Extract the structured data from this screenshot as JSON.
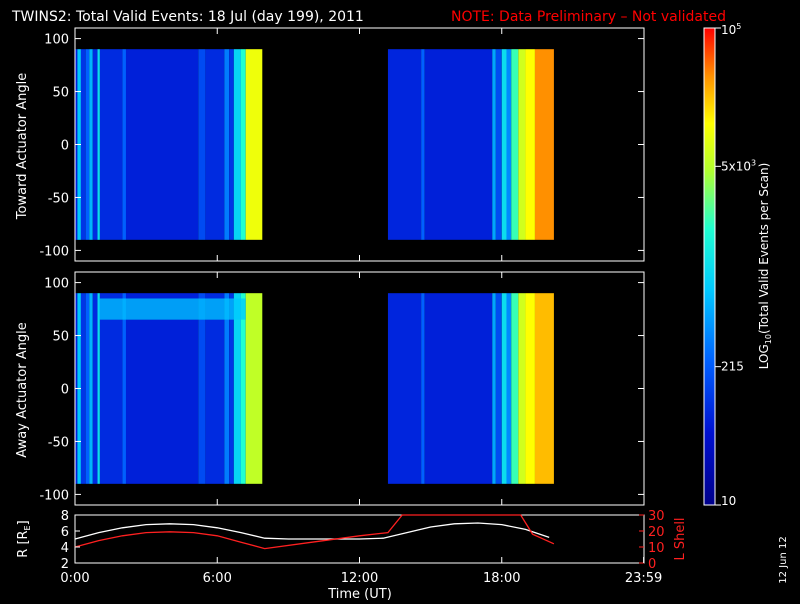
{
  "header": {
    "title": "TWINS2: Total Valid Events: 18 Jul (day 199), 2011",
    "note": "NOTE: Data Preliminary – Not validated",
    "note_color": "#ff0000"
  },
  "date_stamp": "12 Jun 12",
  "chart_data": [
    {
      "type": "heatmap",
      "panel": "toward",
      "ylabel": "Toward Actuator Angle",
      "ylim": [
        -110,
        110
      ],
      "yticks": [
        -100,
        -50,
        0,
        50,
        100
      ],
      "xlim_hours": [
        0,
        24
      ],
      "data_y_range": [
        -90,
        90
      ],
      "data_blocks_hours": [
        [
          0.0,
          7.9
        ],
        [
          13.2,
          20.2
        ]
      ],
      "bands": [
        {
          "t": [
            0.0,
            0.1
          ],
          "level": 0.18
        },
        {
          "t": [
            0.1,
            0.25
          ],
          "level": 0.45
        },
        {
          "t": [
            0.25,
            0.45
          ],
          "level": 0.22
        },
        {
          "t": [
            0.45,
            0.6
          ],
          "level": 0.3
        },
        {
          "t": [
            0.6,
            0.75
          ],
          "level": 0.42
        },
        {
          "t": [
            0.75,
            0.95
          ],
          "level": 0.2
        },
        {
          "t": [
            0.95,
            1.05
          ],
          "level": 0.5
        },
        {
          "t": [
            1.05,
            2.0
          ],
          "level": 0.2
        },
        {
          "t": [
            2.0,
            2.15
          ],
          "level": 0.3
        },
        {
          "t": [
            2.15,
            5.2
          ],
          "level": 0.18
        },
        {
          "t": [
            5.2,
            5.5
          ],
          "level": 0.26
        },
        {
          "t": [
            5.5,
            6.3
          ],
          "level": 0.2
        },
        {
          "t": [
            6.3,
            6.5
          ],
          "level": 0.34
        },
        {
          "t": [
            6.5,
            6.7
          ],
          "level": 0.22
        },
        {
          "t": [
            6.7,
            7.0
          ],
          "level": 0.48
        },
        {
          "t": [
            7.0,
            7.2
          ],
          "level": 0.58
        },
        {
          "t": [
            7.2,
            7.9
          ],
          "level": 0.78
        },
        {
          "t": [
            13.2,
            14.6
          ],
          "level": 0.19
        },
        {
          "t": [
            14.6,
            14.75
          ],
          "level": 0.3
        },
        {
          "t": [
            14.75,
            17.6
          ],
          "level": 0.18
        },
        {
          "t": [
            17.6,
            17.75
          ],
          "level": 0.4
        },
        {
          "t": [
            17.75,
            18.0
          ],
          "level": 0.26
        },
        {
          "t": [
            18.0,
            18.2
          ],
          "level": 0.5
        },
        {
          "t": [
            18.2,
            18.4
          ],
          "level": 0.36
        },
        {
          "t": [
            18.4,
            18.7
          ],
          "level": 0.6
        },
        {
          "t": [
            18.7,
            19.0
          ],
          "level": 0.74
        },
        {
          "t": [
            19.0,
            19.4
          ],
          "level": 0.8
        },
        {
          "t": [
            19.4,
            20.2
          ],
          "level": 0.9
        }
      ],
      "hot_strip": null
    },
    {
      "type": "heatmap",
      "panel": "away",
      "ylabel": "Away Actuator Angle",
      "ylim": [
        -110,
        110
      ],
      "yticks": [
        -100,
        -50,
        0,
        50,
        100
      ],
      "xlim_hours": [
        0,
        24
      ],
      "data_y_range": [
        -90,
        90
      ],
      "data_blocks_hours": [
        [
          0.0,
          7.9
        ],
        [
          13.2,
          20.2
        ]
      ],
      "bands": [
        {
          "t": [
            0.0,
            0.1
          ],
          "level": 0.18
        },
        {
          "t": [
            0.1,
            0.25
          ],
          "level": 0.45
        },
        {
          "t": [
            0.25,
            0.45
          ],
          "level": 0.22
        },
        {
          "t": [
            0.45,
            0.6
          ],
          "level": 0.3
        },
        {
          "t": [
            0.6,
            0.75
          ],
          "level": 0.42
        },
        {
          "t": [
            0.75,
            0.95
          ],
          "level": 0.2
        },
        {
          "t": [
            0.95,
            1.05
          ],
          "level": 0.5
        },
        {
          "t": [
            1.05,
            2.0
          ],
          "level": 0.2
        },
        {
          "t": [
            2.0,
            2.15
          ],
          "level": 0.3
        },
        {
          "t": [
            2.15,
            5.2
          ],
          "level": 0.18
        },
        {
          "t": [
            5.2,
            5.5
          ],
          "level": 0.26
        },
        {
          "t": [
            5.5,
            6.3
          ],
          "level": 0.2
        },
        {
          "t": [
            6.3,
            6.5
          ],
          "level": 0.34
        },
        {
          "t": [
            6.5,
            6.7
          ],
          "level": 0.22
        },
        {
          "t": [
            6.7,
            7.0
          ],
          "level": 0.48
        },
        {
          "t": [
            7.0,
            7.2
          ],
          "level": 0.58
        },
        {
          "t": [
            7.2,
            7.9
          ],
          "level": 0.72
        },
        {
          "t": [
            13.2,
            14.6
          ],
          "level": 0.19
        },
        {
          "t": [
            14.6,
            14.75
          ],
          "level": 0.3
        },
        {
          "t": [
            14.75,
            17.6
          ],
          "level": 0.18
        },
        {
          "t": [
            17.6,
            17.75
          ],
          "level": 0.4
        },
        {
          "t": [
            17.75,
            18.0
          ],
          "level": 0.26
        },
        {
          "t": [
            18.0,
            18.2
          ],
          "level": 0.5
        },
        {
          "t": [
            18.2,
            18.4
          ],
          "level": 0.36
        },
        {
          "t": [
            18.4,
            18.7
          ],
          "level": 0.6
        },
        {
          "t": [
            18.7,
            19.0
          ],
          "level": 0.74
        },
        {
          "t": [
            19.0,
            19.4
          ],
          "level": 0.8
        },
        {
          "t": [
            19.4,
            20.2
          ],
          "level": 0.86
        }
      ],
      "hot_strip": {
        "t": [
          1.0,
          7.2
        ],
        "y": [
          65,
          85
        ],
        "level": 0.45
      }
    },
    {
      "type": "line",
      "panel": "orbit",
      "ylabel_left": "R [R",
      "ylabel_left_sub": "E",
      "ylabel_left_close": "]",
      "ylabel_right": "L Shell",
      "ylim_left": [
        2,
        8
      ],
      "yticks_left": [
        2,
        4,
        6,
        8
      ],
      "ylim_right": [
        0,
        30
      ],
      "yticks_right": [
        0,
        10,
        20,
        30
      ],
      "xlabel": "Time (UT)",
      "xlim_hours": [
        0,
        24
      ],
      "xtick_hours": [
        0,
        6,
        12,
        18,
        23.9833
      ],
      "xtick_labels": [
        "0:00",
        "6:00",
        "12:00",
        "18:00",
        "23:59"
      ],
      "series": [
        {
          "axis": "left",
          "color": "#ffffff",
          "x": [
            0,
            1,
            2,
            3,
            4,
            5,
            6,
            7,
            8,
            9,
            10,
            11,
            12,
            13,
            14,
            15,
            16,
            17,
            18,
            19,
            20
          ],
          "y": [
            5.0,
            5.8,
            6.4,
            6.8,
            6.9,
            6.8,
            6.4,
            5.8,
            5.1,
            5.0,
            5.0,
            5.0,
            5.0,
            5.1,
            5.8,
            6.5,
            6.9,
            7.0,
            6.8,
            6.2,
            5.2
          ]
        },
        {
          "axis": "right",
          "color": "#ff2020",
          "x": [
            0,
            1,
            2,
            3,
            4,
            5,
            6,
            7,
            8,
            10,
            12,
            13.2,
            13.8,
            18.8,
            19.3,
            20.2
          ],
          "y": [
            10,
            14,
            17,
            19,
            19.5,
            19,
            17,
            13,
            9,
            13,
            17,
            19,
            31,
            31,
            18,
            12
          ]
        }
      ]
    },
    {
      "type": "heatmap",
      "panel": "colorbar",
      "label": "LOG",
      "label_sub": "10",
      "label_rest": "(Total Valid Events per Scan)",
      "tick_labels": [
        "10",
        "215",
        "5x10",
        "10"
      ],
      "tick_sups": [
        "",
        "",
        "3",
        "5"
      ],
      "tick_fractions": [
        0,
        0.29,
        0.71,
        1
      ]
    }
  ]
}
